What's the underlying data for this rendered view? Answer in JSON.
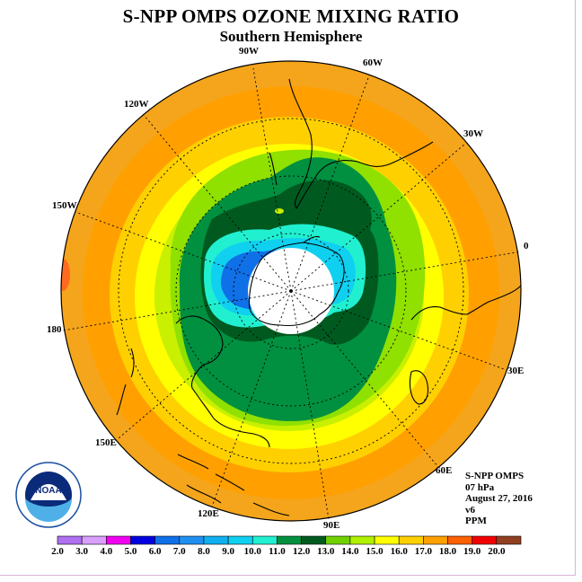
{
  "title": "S-NPP OMPS OZONE MIXING RATIO",
  "subtitle": "Southern Hemisphere",
  "longitude_labels": [
    "90W",
    "60W",
    "30W",
    "0",
    "30E",
    "60E",
    "90E",
    "120E",
    "150E",
    "180",
    "150W",
    "120W"
  ],
  "info": {
    "instrument": "S-NPP OMPS",
    "level": "07 hPa",
    "date": "August 27, 2016",
    "version": "v6",
    "units": "PPM"
  },
  "logo_text": "NOAA",
  "colorbar": {
    "labels": [
      "2.0",
      "3.0",
      "4.0",
      "5.0",
      "6.0",
      "7.0",
      "8.0",
      "9.0",
      "10.0",
      "11.0",
      "12.0",
      "13.0",
      "14.0",
      "15.0",
      "16.0",
      "17.0",
      "18.0",
      "19.0",
      "20.0"
    ],
    "colors": [
      "#b070f0",
      "#d9a0ff",
      "#f000f0",
      "#0000e0",
      "#1070e8",
      "#2090f0",
      "#10b0f0",
      "#10d0f0",
      "#20f0d0",
      "#009040",
      "#005a20",
      "#70d000",
      "#b0f000",
      "#ffff00",
      "#ffd000",
      "#ffa000",
      "#ff6000",
      "#f00000",
      "#904020"
    ]
  },
  "colors": {
    "outer_ring": "#f4a51b",
    "ring_17": "#ffa000",
    "ring_16": "#ffd000",
    "ring_15": "#ffff00",
    "ring_14": "#c8f000",
    "ring_13": "#90e000",
    "ring_12": "#009040",
    "ring_11": "#005a20",
    "vortex_edge": "#20f0d0",
    "vortex_mid": "#10d0f0",
    "vortex_core": "#1070e8",
    "pole_hole": "#ffffff"
  }
}
